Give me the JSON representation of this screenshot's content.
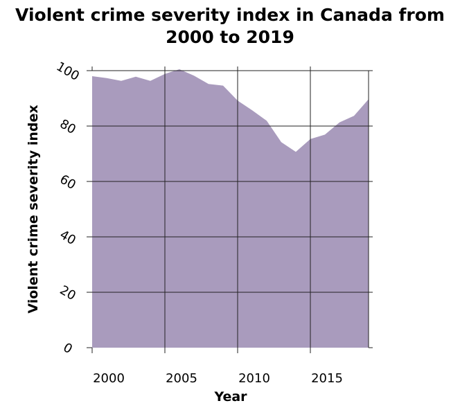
{
  "chart_data": {
    "type": "area",
    "title_line1": "Violent crime severity index in Canada from",
    "title_line2": "2000 to 2019",
    "xlabel": "Year",
    "ylabel": "Violent crime severity index",
    "xlim": [
      2000,
      2019
    ],
    "ylim": [
      0,
      100
    ],
    "x_ticks": [
      2000,
      2005,
      2010,
      2015
    ],
    "y_ticks": [
      0,
      20,
      40,
      60,
      80,
      100
    ],
    "grid": true,
    "fill_color": "#a99bbd",
    "x": [
      2000,
      2001,
      2002,
      2003,
      2004,
      2005,
      2006,
      2007,
      2008,
      2009,
      2010,
      2011,
      2012,
      2013,
      2014,
      2015,
      2016,
      2017,
      2018,
      2019
    ],
    "values": [
      98,
      97.3,
      96.3,
      97.8,
      96.3,
      98.8,
      100.5,
      98.2,
      95.2,
      94.6,
      89.2,
      85.7,
      81.9,
      74.2,
      70.7,
      75.3,
      76.9,
      81.3,
      83.7,
      89.7
    ]
  }
}
